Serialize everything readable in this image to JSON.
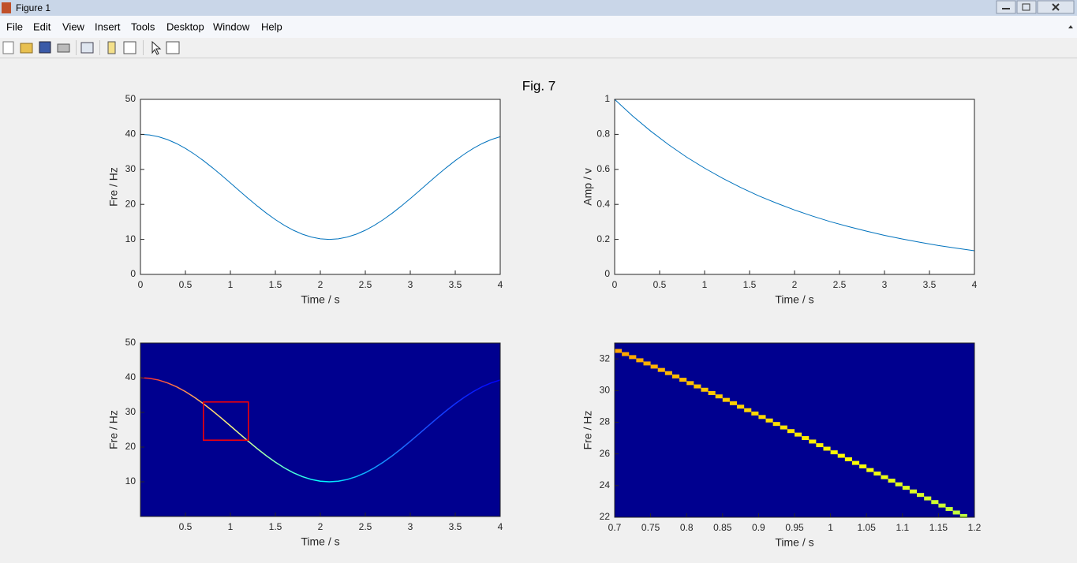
{
  "window": {
    "title": "Figure 1",
    "menu": [
      "File",
      "Edit",
      "View",
      "Insert",
      "Tools",
      "Desktop",
      "Window",
      "Help"
    ]
  },
  "figure_title": "Fig. 7",
  "chart_data": [
    {
      "type": "line",
      "color": "#0072bd",
      "xlabel": "Time / s",
      "ylabel": "Fre / Hz",
      "x": [
        0,
        0.1,
        0.2,
        0.3,
        0.4,
        0.5,
        0.6,
        0.7,
        0.8,
        0.9,
        1,
        1.1,
        1.2,
        1.3,
        1.4,
        1.5,
        1.6,
        1.7,
        1.8,
        1.9,
        2,
        2.1,
        2.2,
        2.3,
        2.4,
        2.5,
        2.6,
        2.7,
        2.8,
        2.9,
        3,
        3.1,
        3.2,
        3.3,
        3.4,
        3.5,
        3.6,
        3.7,
        3.8,
        3.9,
        4
      ],
      "values": [
        40,
        39.83,
        39.33,
        38.51,
        37.39,
        36,
        34.35,
        32.5,
        30.48,
        28.34,
        26.12,
        23.88,
        21.66,
        19.52,
        17.5,
        15.65,
        14,
        12.61,
        11.49,
        10.67,
        10.17,
        10,
        10.17,
        10.67,
        11.49,
        12.61,
        14,
        15.65,
        17.5,
        19.52,
        21.66,
        23.88,
        26.12,
        28.34,
        30.48,
        32.5,
        34.35,
        36,
        37.39,
        38.51,
        39.33
      ],
      "xlim": [
        0,
        4
      ],
      "xticks": [
        0,
        0.5,
        1,
        1.5,
        2,
        2.5,
        3,
        3.5,
        4
      ],
      "ylim": [
        0,
        50
      ],
      "yticks": [
        0,
        10,
        20,
        30,
        40,
        50
      ]
    },
    {
      "type": "line",
      "color": "#0072bd",
      "xlabel": "Time / s",
      "ylabel": "Amp / v",
      "x": [
        0,
        0.2,
        0.4,
        0.6,
        0.8,
        1,
        1.2,
        1.4,
        1.6,
        1.8,
        2,
        2.2,
        2.4,
        2.6,
        2.8,
        3,
        3.2,
        3.4,
        3.6,
        3.8,
        4
      ],
      "values": [
        1,
        0.905,
        0.819,
        0.741,
        0.67,
        0.607,
        0.549,
        0.497,
        0.449,
        0.407,
        0.368,
        0.333,
        0.301,
        0.273,
        0.247,
        0.223,
        0.202,
        0.183,
        0.165,
        0.15,
        0.135
      ],
      "xlim": [
        0,
        4
      ],
      "xticks": [
        0,
        0.5,
        1,
        1.5,
        2,
        2.5,
        3,
        3.5,
        4
      ],
      "ylim": [
        0,
        1
      ],
      "yticks": [
        0,
        0.2,
        0.4,
        0.6,
        0.8,
        1
      ]
    },
    {
      "type": "spectrogram",
      "background": "#00008f",
      "colormap": [
        "#ff2020",
        "#ffff80",
        "#00ffff",
        "#2060ff",
        "#0000ff"
      ],
      "xlabel": "Time / s",
      "ylabel": "Fre / Hz",
      "x": [
        0,
        0.1,
        0.2,
        0.3,
        0.4,
        0.5,
        0.6,
        0.7,
        0.8,
        0.9,
        1,
        1.1,
        1.2,
        1.3,
        1.4,
        1.5,
        1.6,
        1.7,
        1.8,
        1.9,
        2,
        2.1,
        2.2,
        2.3,
        2.4,
        2.5,
        2.6,
        2.7,
        2.8,
        2.9,
        3,
        3.1,
        3.2,
        3.3,
        3.4,
        3.5,
        3.6,
        3.7,
        3.8,
        3.9,
        4
      ],
      "values": [
        40,
        39.83,
        39.33,
        38.51,
        37.39,
        36,
        34.35,
        32.5,
        30.48,
        28.34,
        26.12,
        23.88,
        21.66,
        19.52,
        17.5,
        15.65,
        14,
        12.61,
        11.49,
        10.67,
        10.17,
        10,
        10.17,
        10.67,
        11.49,
        12.61,
        14,
        15.65,
        17.5,
        19.52,
        21.66,
        23.88,
        26.12,
        28.34,
        30.48,
        32.5,
        34.35,
        36,
        37.39,
        38.51,
        39.33
      ],
      "box": {
        "x": [
          0.7,
          1.2
        ],
        "y": [
          22,
          33
        ],
        "color": "#ff0000"
      },
      "xlim": [
        0,
        4
      ],
      "xticks": [
        0.5,
        1,
        1.5,
        2,
        2.5,
        3,
        3.5,
        4
      ],
      "ylim": [
        0,
        50
      ],
      "yticks": [
        10,
        20,
        30,
        40,
        50
      ]
    },
    {
      "type": "heatmap",
      "background": "#00008f",
      "colormap": [
        "#ffa500",
        "#ffd000",
        "#ffff00",
        "#c0ff40"
      ],
      "xlabel": "Time / s",
      "ylabel": "Fre / Hz",
      "x": [
        0.7,
        0.71,
        0.72,
        0.73,
        0.74,
        0.75,
        0.76,
        0.77,
        0.78,
        0.79,
        0.8,
        0.81,
        0.82,
        0.83,
        0.84,
        0.85,
        0.86,
        0.87,
        0.88,
        0.89,
        0.9,
        0.91,
        0.92,
        0.93,
        0.94,
        0.95,
        0.96,
        0.97,
        0.98,
        0.99,
        1,
        1.01,
        1.02,
        1.03,
        1.04,
        1.05,
        1.06,
        1.07,
        1.08,
        1.09,
        1.1,
        1.11,
        1.12,
        1.13,
        1.14,
        1.15,
        1.16,
        1.17,
        1.18
      ],
      "values": [
        32.5,
        32.3,
        32.11,
        31.91,
        31.71,
        31.51,
        31.3,
        31.1,
        30.89,
        30.68,
        30.47,
        30.26,
        30.05,
        29.84,
        29.63,
        29.41,
        29.2,
        28.98,
        28.76,
        28.55,
        28.33,
        28.11,
        27.89,
        27.67,
        27.44,
        27.22,
        27,
        26.78,
        26.55,
        26.33,
        26.1,
        25.88,
        25.66,
        25.43,
        25.21,
        24.98,
        24.76,
        24.53,
        24.31,
        24.08,
        23.86,
        23.63,
        23.41,
        23.19,
        22.96,
        22.74,
        22.52,
        22.3,
        22.08
      ],
      "xlim": [
        0.7,
        1.2
      ],
      "xticks": [
        0.7,
        0.75,
        0.8,
        0.85,
        0.9,
        0.95,
        1,
        1.05,
        1.1,
        1.15,
        1.2
      ],
      "ylim": [
        22,
        33
      ],
      "yticks": [
        22,
        24,
        26,
        28,
        30,
        32
      ]
    }
  ]
}
